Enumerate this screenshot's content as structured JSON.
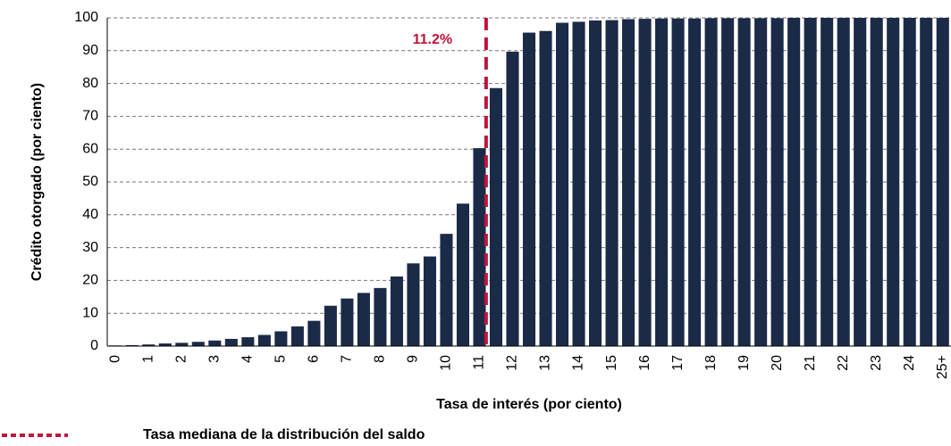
{
  "chart_data": {
    "type": "bar",
    "ylabel": "Crédito otorgado (por ciento)",
    "xlabel": "Tasa de interés (por ciento)",
    "categories": [
      "0",
      null,
      "1",
      null,
      "2",
      null,
      "3",
      null,
      "4",
      null,
      "5",
      null,
      "6",
      null,
      "7",
      null,
      "8",
      null,
      "9",
      null,
      "10",
      null,
      "11",
      null,
      "12",
      null,
      "13",
      null,
      "14",
      null,
      "15",
      null,
      "16",
      null,
      "17",
      null,
      "18",
      null,
      "19",
      null,
      "20",
      null,
      "21",
      null,
      "22",
      null,
      "23",
      null,
      "24",
      null,
      "25+"
    ],
    "values": [
      0.2,
      0.3,
      0.5,
      0.8,
      1.0,
      1.3,
      1.7,
      2.2,
      2.7,
      3.4,
      4.5,
      6.0,
      7.7,
      12.3,
      14.5,
      16.2,
      17.7,
      21.2,
      25.2,
      27.3,
      34.2,
      43.4,
      60.3,
      78.6,
      89.7,
      95.5,
      96.0,
      98.5,
      98.8,
      99.2,
      99.3,
      99.6,
      99.7,
      99.8,
      99.8,
      99.8,
      99.9,
      99.9,
      99.9,
      99.9,
      99.9,
      100,
      100,
      100,
      100,
      100,
      100,
      100,
      100,
      100,
      100
    ],
    "color": "#1b2a47",
    "ylim": [
      0,
      100
    ],
    "yticks": [
      0,
      10,
      20,
      30,
      40,
      50,
      60,
      70,
      80,
      90,
      100
    ],
    "grid": true,
    "median_line": {
      "value": 11.2,
      "label": "11.2%",
      "color": "#c0143c",
      "legend": "Tasa mediana de la distribución del saldo"
    }
  }
}
